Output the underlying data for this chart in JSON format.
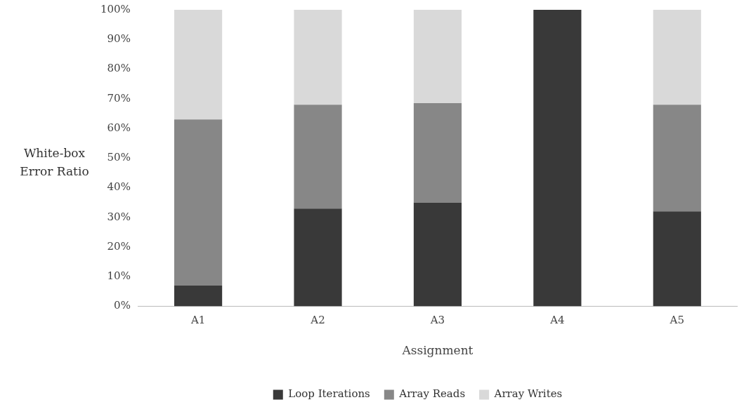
{
  "chart_data": {
    "type": "bar",
    "stacked": true,
    "xlabel": "Assignment",
    "ylabel": "White-box Error Ratio",
    "categories": [
      "A1",
      "A2",
      "A3",
      "A4",
      "A5"
    ],
    "series": [
      {
        "name": "Loop Iterations",
        "color": "#393939",
        "values": [
          7,
          33,
          35,
          100,
          32
        ]
      },
      {
        "name": "Array Reads",
        "color": "#878787",
        "values": [
          56,
          35,
          33.5,
          0,
          36
        ]
      },
      {
        "name": "Array Writes",
        "color": "#d9d9d9",
        "values": [
          37,
          32,
          31.5,
          0,
          32
        ]
      }
    ],
    "ylim": [
      0,
      100
    ],
    "yticks": [
      {
        "value": 0,
        "label": "0%"
      },
      {
        "value": 10,
        "label": "10%"
      },
      {
        "value": 20,
        "label": "20%"
      },
      {
        "value": 30,
        "label": "30%"
      },
      {
        "value": 40,
        "label": "40%"
      },
      {
        "value": 50,
        "label": "50%"
      },
      {
        "value": 60,
        "label": "60%"
      },
      {
        "value": 70,
        "label": "70%"
      },
      {
        "value": 80,
        "label": "80%"
      },
      {
        "value": 90,
        "label": "90%"
      },
      {
        "value": 100,
        "label": "100%"
      }
    ],
    "grid": false,
    "legend": "bottom"
  }
}
